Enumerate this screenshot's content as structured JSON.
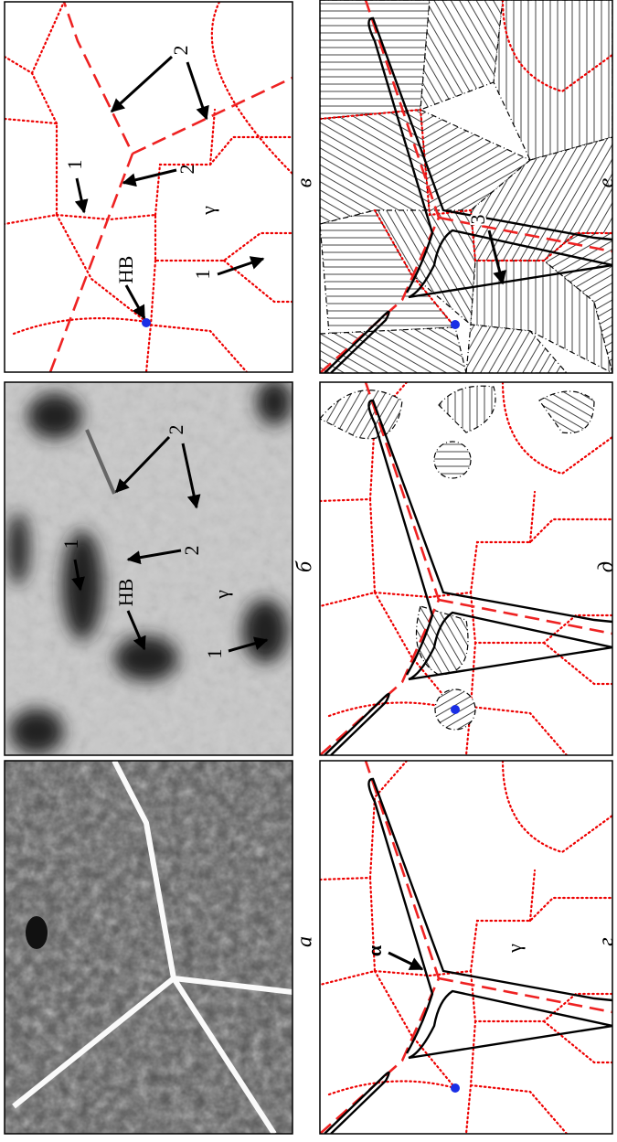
{
  "panels": [
    {
      "label": "а"
    },
    {
      "label": "б",
      "annotations": [
        "НВ",
        "1",
        "1",
        "2",
        "2",
        "γ"
      ]
    },
    {
      "label": "в",
      "annotations": [
        "НВ",
        "1",
        "1",
        "2",
        "2",
        "γ"
      ]
    },
    {
      "label": "г",
      "annotations": [
        "α",
        "γ"
      ]
    },
    {
      "label": "д"
    },
    {
      "label": "е",
      "annotations": [
        "3"
      ]
    }
  ]
}
